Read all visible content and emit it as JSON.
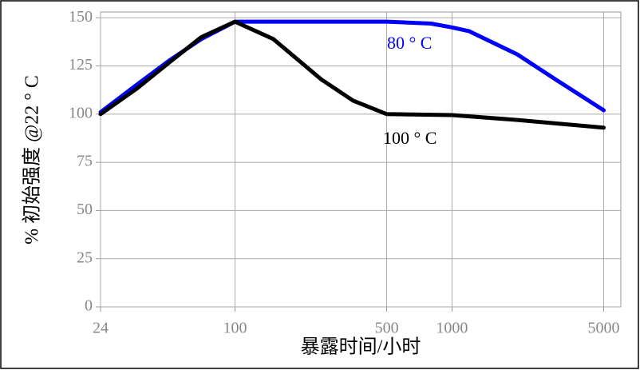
{
  "chart_data": {
    "type": "line",
    "log_x": true,
    "x_label": "暴露时间/小时",
    "y_label": "% 初始强度 @22 ° C",
    "xlim": [
      24,
      6000
    ],
    "xticks": [
      24,
      100,
      500,
      1000,
      5000
    ],
    "ylim": [
      0,
      153
    ],
    "yticks": [
      0,
      25,
      50,
      75,
      100,
      125,
      150
    ],
    "grid": true,
    "series": [
      {
        "name": "80 ° C",
        "color": "#0000ff",
        "x": [
          24,
          35,
          50,
          70,
          100,
          500,
          800,
          1000,
          1200,
          2000,
          3000,
          5000
        ],
        "values": [
          101,
          115,
          128,
          139,
          148,
          148,
          147,
          145,
          143,
          131,
          118,
          102
        ]
      },
      {
        "name": "100 ° C",
        "color": "#000000",
        "x": [
          24,
          35,
          50,
          70,
          100,
          150,
          250,
          350,
          500,
          1000,
          2000,
          5000
        ],
        "values": [
          100,
          113,
          127,
          140,
          148,
          139,
          118,
          107,
          100,
          99.5,
          97,
          93
        ]
      }
    ]
  }
}
